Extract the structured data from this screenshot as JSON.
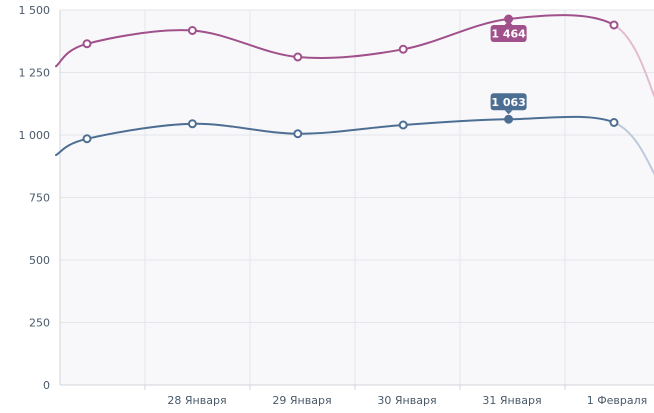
{
  "chart_data": {
    "type": "line",
    "title": "",
    "xlabel": "",
    "ylabel": "",
    "ylim": [
      0,
      1500
    ],
    "yticks": [
      0,
      250,
      500,
      750,
      1000,
      1250,
      1500
    ],
    "ytick_labels": [
      "0",
      "250",
      "500",
      "750",
      "1 000",
      "1 250",
      "1 500"
    ],
    "categories": [
      "",
      "28 Января",
      "29 Января",
      "30 Января",
      "31 Января",
      "1 Февраля"
    ],
    "grid": true,
    "smooth": true,
    "series": [
      {
        "color": "#a0508a",
        "faded_color": "#e3bccf",
        "values": [
          1365,
          1418,
          1312,
          1343,
          1464,
          1440
        ],
        "edge_left": 1275,
        "edge_right": 1120,
        "highlight_index": 4,
        "highlight_label": "1 464"
      },
      {
        "color": "#4d6e93",
        "faded_color": "#bccadb",
        "values": [
          985,
          1045,
          1005,
          1040,
          1063,
          1050
        ],
        "edge_left": 920,
        "edge_right": 820,
        "highlight_index": 4,
        "highlight_label": "1 063"
      }
    ]
  }
}
